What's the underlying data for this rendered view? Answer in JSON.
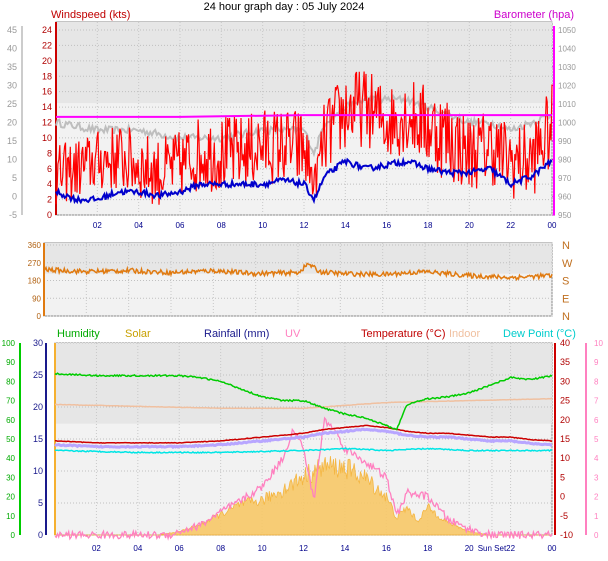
{
  "title": "24 hour graph day : 05 July 2024",
  "chart_data": [
    {
      "type": "line",
      "panel": "wind-baro",
      "left_label": "Windspeed (kts)",
      "right_label": "Barometer (hpa)",
      "x_ticks": [
        "02",
        "04",
        "06",
        "08",
        "10",
        "12",
        "14",
        "16",
        "18",
        "20",
        "22",
        "00"
      ],
      "x_range_hours": [
        0,
        24
      ],
      "outer_left_ticks": [
        "-5",
        "0",
        "5",
        "10",
        "15",
        "20",
        "25",
        "30",
        "35",
        "40",
        "45"
      ],
      "outer_left_range": [
        -5,
        45
      ],
      "left_ticks": [
        "0",
        "2",
        "4",
        "6",
        "8",
        "10",
        "12",
        "14",
        "16",
        "18",
        "20",
        "22",
        "24"
      ],
      "left_range": [
        0,
        24
      ],
      "right_ticks": [
        "950",
        "960",
        "970",
        "980",
        "990",
        "1000",
        "1010",
        "1020",
        "1030",
        "1040",
        "1050"
      ],
      "right_range": [
        950,
        1050
      ],
      "grid": true,
      "series": [
        {
          "name": "Windspeed (kts)",
          "color": "#ff0000",
          "x": [
            0,
            1,
            2,
            3,
            4,
            5,
            6,
            7,
            8,
            9,
            10,
            11,
            12,
            12.5,
            13,
            14,
            15,
            16,
            17,
            18,
            19,
            20,
            21,
            22,
            23,
            24
          ],
          "y": [
            5,
            6,
            7,
            7,
            7,
            6,
            6,
            8,
            8,
            8,
            9,
            9,
            8,
            3,
            10,
            13,
            14,
            12,
            13,
            12,
            10,
            8,
            9,
            6,
            6,
            11
          ],
          "min": [
            1,
            2,
            3,
            3,
            2,
            1,
            2,
            3,
            3,
            3,
            4,
            4,
            3,
            2,
            5,
            8,
            9,
            7,
            8,
            6,
            4,
            3,
            4,
            2,
            2,
            6
          ],
          "max": [
            9,
            10,
            11,
            12,
            11,
            10,
            11,
            13,
            13,
            13,
            14,
            14,
            14,
            6,
            15,
            19,
            19,
            17,
            18,
            17,
            16,
            13,
            14,
            12,
            12,
            17
          ]
        },
        {
          "name": "Wind (grey)",
          "color": "#bebebe",
          "x": [
            0,
            2,
            4,
            6,
            8,
            10,
            12,
            12.5,
            13,
            14,
            15,
            16,
            17,
            18,
            19,
            20,
            21,
            22,
            23,
            24
          ],
          "y": [
            12,
            11,
            11,
            10,
            10,
            11,
            11,
            8,
            12,
            14,
            15,
            15,
            15,
            14,
            13,
            12,
            12,
            11,
            12,
            13
          ]
        },
        {
          "name": "Wind average (blue)",
          "color": "#0000cc",
          "x": [
            0,
            1,
            2,
            3,
            4,
            5,
            6,
            7,
            8,
            9,
            10,
            11,
            12,
            12.5,
            13,
            14,
            15,
            16,
            17,
            18,
            19,
            20,
            21,
            22,
            23,
            24
          ],
          "y": [
            3,
            2,
            2,
            3,
            3,
            2.5,
            3,
            4,
            4,
            4,
            4,
            4.5,
            4,
            2,
            5,
            7,
            6,
            6.5,
            7,
            6,
            5.5,
            5.5,
            6,
            4,
            5,
            7
          ]
        },
        {
          "name": "Barometer (hpa)",
          "color": "#ff00ff",
          "x": [
            0,
            6,
            12,
            18,
            24
          ],
          "y": [
            1003,
            1003,
            1004,
            1004,
            1004
          ]
        }
      ]
    },
    {
      "type": "scatter",
      "panel": "wind-direction",
      "left_ticks": [
        "0",
        "90",
        "180",
        "270",
        "360"
      ],
      "left_range": [
        0,
        360
      ],
      "right_ticks": [
        "N",
        "E",
        "S",
        "W",
        "N"
      ],
      "series": [
        {
          "name": "Wind direction",
          "color": "#e07a10",
          "x": [
            0,
            2,
            4,
            6,
            8,
            10,
            12,
            12.5,
            13,
            14,
            16,
            18,
            20,
            22,
            24
          ],
          "y": [
            235,
            225,
            230,
            220,
            230,
            215,
            220,
            265,
            225,
            215,
            210,
            225,
            205,
            195,
            205
          ]
        }
      ]
    },
    {
      "type": "line",
      "panel": "temperature",
      "labels": [
        "Humidity",
        "Solar",
        "Rainfall (mm)",
        "UV",
        "Temperature (°C)",
        "Indoor",
        "Dew Point (°C)"
      ],
      "x_ticks": [
        "02",
        "04",
        "06",
        "08",
        "10",
        "12",
        "14",
        "16",
        "18",
        "20",
        "Sun Set",
        "22",
        "00"
      ],
      "humidity_ticks": [
        "0",
        "10",
        "20",
        "30",
        "40",
        "50",
        "60",
        "70",
        "80",
        "90",
        "100"
      ],
      "humidity_range": [
        0,
        100
      ],
      "rain_ticks": [
        "0",
        "5",
        "10",
        "15",
        "20",
        "25",
        "30"
      ],
      "rain_range": [
        0,
        30
      ],
      "temp_ticks": [
        "-10",
        "-5",
        "0",
        "5",
        "10",
        "15",
        "20",
        "25",
        "30",
        "35",
        "40"
      ],
      "temp_range": [
        -10,
        40
      ],
      "uv_ticks": [
        "0",
        "1",
        "2",
        "3",
        "4",
        "5",
        "6",
        "7",
        "8",
        "9",
        "10"
      ],
      "uv_range": [
        0,
        10
      ],
      "grid": true,
      "series": [
        {
          "name": "Humidity",
          "color": "#00cc00",
          "x": [
            0,
            2,
            4,
            6,
            7,
            8,
            9,
            10,
            11,
            12,
            13,
            14,
            15,
            16,
            16.5,
            17,
            18,
            19,
            20,
            21,
            22,
            23,
            24
          ],
          "y": [
            84,
            83,
            83,
            83,
            82,
            80,
            76,
            72,
            70,
            70,
            66,
            63,
            61,
            57,
            55,
            68,
            71,
            72,
            74,
            78,
            82,
            81,
            83
          ]
        },
        {
          "name": "Indoor",
          "color": "#f0c0a0",
          "x": [
            0,
            4,
            8,
            12,
            16,
            20,
            24
          ],
          "y": [
            24,
            23.5,
            23,
            23,
            24.5,
            25,
            25.5
          ]
        },
        {
          "name": "Temperature (°C)",
          "color": "#cc0000",
          "x": [
            0,
            2,
            4,
            6,
            8,
            10,
            12,
            13,
            14,
            15,
            16,
            17,
            18,
            19,
            20,
            21,
            22,
            23,
            24
          ],
          "y": [
            14.5,
            14,
            14,
            14,
            14.5,
            15.5,
            16.5,
            17.5,
            18,
            18.5,
            18,
            17,
            16.5,
            16.5,
            16,
            15.5,
            15.5,
            14.8,
            14.5
          ]
        },
        {
          "name": "Apparent (violet)",
          "color": "#b8a6ff",
          "x": [
            0,
            2,
            4,
            6,
            8,
            10,
            12,
            13,
            14,
            15,
            16,
            17,
            18,
            19,
            20,
            21,
            22,
            23,
            24
          ],
          "y": [
            13.5,
            13,
            13,
            13,
            13.5,
            14.5,
            15.5,
            16.5,
            17,
            17.5,
            17,
            16,
            15.5,
            15.5,
            15,
            14.5,
            14.5,
            13.8,
            13.5
          ]
        },
        {
          "name": "Dew Point (°C)",
          "color": "#00e5e5",
          "x": [
            0,
            4,
            8,
            12,
            14,
            16,
            18,
            20,
            22,
            24
          ],
          "y": [
            12,
            11.5,
            11.5,
            12,
            12.5,
            12,
            12.5,
            12,
            12,
            12
          ]
        },
        {
          "name": "Solar",
          "color": "#f5b030",
          "x": [
            0,
            5,
            6,
            7,
            8,
            9,
            10,
            11,
            12,
            13,
            14,
            15,
            16,
            16.5,
            17,
            17.5,
            18,
            19,
            20,
            21,
            24
          ],
          "y": [
            0,
            0,
            2,
            6,
            12,
            18,
            20,
            26,
            34,
            40,
            39,
            33,
            22,
            10,
            16,
            8,
            16,
            7,
            2,
            0,
            0
          ]
        },
        {
          "name": "UV",
          "color": "#ff80c0",
          "x": [
            0,
            5.5,
            7,
            8,
            9,
            10,
            11,
            11.5,
            12,
            12.5,
            13,
            13.5,
            14,
            15,
            16,
            16.5,
            17,
            18,
            19,
            20,
            21,
            24
          ],
          "y": [
            0,
            0,
            0.5,
            1.2,
            1.8,
            2.5,
            4,
            5.5,
            4.5,
            1.8,
            6,
            5.5,
            4.5,
            3.8,
            3,
            1,
            2.2,
            2,
            0.8,
            0.3,
            0,
            0
          ]
        }
      ]
    }
  ]
}
